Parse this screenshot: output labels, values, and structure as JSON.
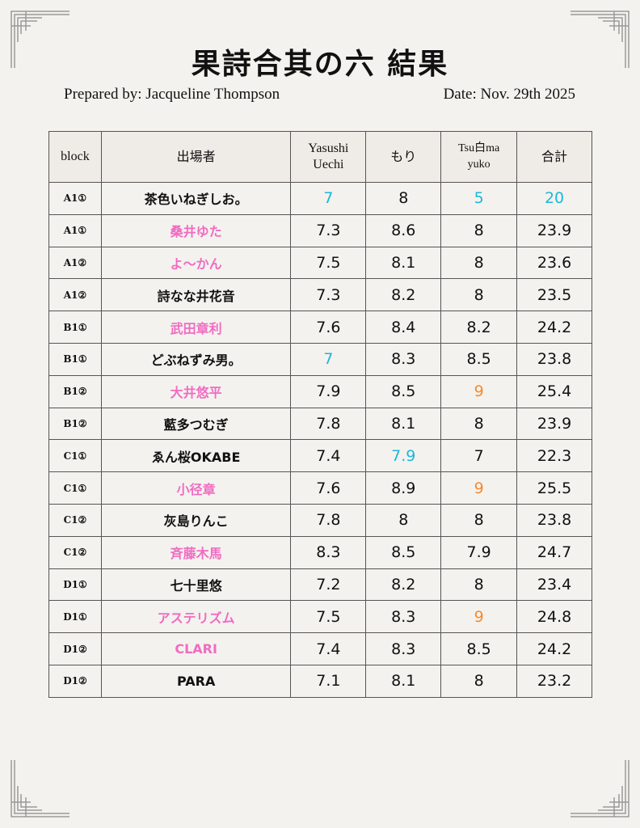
{
  "title": "果詩合其の六  結果",
  "prepared_by": "Prepared by: Jacqueline Thompson",
  "date": "Date: Nov. 29th 2025",
  "colors": {
    "pink": "#f06cc2",
    "cyan": "#1cb7d9",
    "orange": "#f58a2c"
  },
  "table": {
    "headers": [
      "block",
      "出場者",
      "Yasushi Uechi",
      "もり",
      "Tsu白ma yuko",
      "合計"
    ],
    "rows": [
      {
        "block": "A1①",
        "name": "茶色いねぎしお。",
        "name_color": null,
        "scores": [
          "7",
          "8",
          "5",
          "20"
        ],
        "score_colors": [
          "cyan",
          null,
          "cyan",
          "cyan"
        ]
      },
      {
        "block": "A1①",
        "name": "桑井ゆた",
        "name_color": "pink",
        "scores": [
          "7.3",
          "8.6",
          "8",
          "23.9"
        ],
        "score_colors": [
          null,
          null,
          null,
          null
        ]
      },
      {
        "block": "A1②",
        "name": "よ〜かん",
        "name_color": "pink",
        "scores": [
          "7.5",
          "8.1",
          "8",
          "23.6"
        ],
        "score_colors": [
          null,
          null,
          null,
          null
        ]
      },
      {
        "block": "A1②",
        "name": "詩なな井花音",
        "name_color": null,
        "scores": [
          "7.3",
          "8.2",
          "8",
          "23.5"
        ],
        "score_colors": [
          null,
          null,
          null,
          null
        ]
      },
      {
        "block": "B1①",
        "name": "武田章利",
        "name_color": "pink",
        "scores": [
          "7.6",
          "8.4",
          "8.2",
          "24.2"
        ],
        "score_colors": [
          null,
          null,
          null,
          null
        ]
      },
      {
        "block": "B1①",
        "name": "どぶねずみ男。",
        "name_color": null,
        "scores": [
          "7",
          "8.3",
          "8.5",
          "23.8"
        ],
        "score_colors": [
          "cyan",
          null,
          null,
          null
        ]
      },
      {
        "block": "B1②",
        "name": "大井悠平",
        "name_color": "pink",
        "scores": [
          "7.9",
          "8.5",
          "9",
          "25.4"
        ],
        "score_colors": [
          null,
          null,
          "orange",
          null
        ]
      },
      {
        "block": "B1②",
        "name": "藍多つむぎ",
        "name_color": null,
        "scores": [
          "7.8",
          "8.1",
          "8",
          "23.9"
        ],
        "score_colors": [
          null,
          null,
          null,
          null
        ]
      },
      {
        "block": "C1①",
        "name": "ゑん桜OKABE",
        "name_color": null,
        "scores": [
          "7.4",
          "7.9",
          "7",
          "22.3"
        ],
        "score_colors": [
          null,
          "cyan",
          null,
          null
        ]
      },
      {
        "block": "C1①",
        "name": "小径章",
        "name_color": "pink",
        "scores": [
          "7.6",
          "8.9",
          "9",
          "25.5"
        ],
        "score_colors": [
          null,
          null,
          "orange",
          null
        ]
      },
      {
        "block": "C1②",
        "name": "灰島りんこ",
        "name_color": null,
        "scores": [
          "7.8",
          "8",
          "8",
          "23.8"
        ],
        "score_colors": [
          null,
          null,
          null,
          null
        ]
      },
      {
        "block": "C1②",
        "name": "斉藤木馬",
        "name_color": "pink",
        "scores": [
          "8.3",
          "8.5",
          "7.9",
          "24.7"
        ],
        "score_colors": [
          null,
          null,
          null,
          null
        ]
      },
      {
        "block": "D1①",
        "name": "七十里悠",
        "name_color": null,
        "scores": [
          "7.2",
          "8.2",
          "8",
          "23.4"
        ],
        "score_colors": [
          null,
          null,
          null,
          null
        ]
      },
      {
        "block": "D1①",
        "name": "アステリズム",
        "name_color": "pink",
        "scores": [
          "7.5",
          "8.3",
          "9",
          "24.8"
        ],
        "score_colors": [
          null,
          null,
          "orange",
          null
        ]
      },
      {
        "block": "D1②",
        "name": "CLARI",
        "name_color": "pink",
        "scores": [
          "7.4",
          "8.3",
          "8.5",
          "24.2"
        ],
        "score_colors": [
          null,
          null,
          null,
          null
        ]
      },
      {
        "block": "D1②",
        "name": "PARA",
        "name_color": null,
        "scores": [
          "7.1",
          "8.1",
          "8",
          "23.2"
        ],
        "score_colors": [
          null,
          null,
          null,
          null
        ]
      }
    ]
  }
}
